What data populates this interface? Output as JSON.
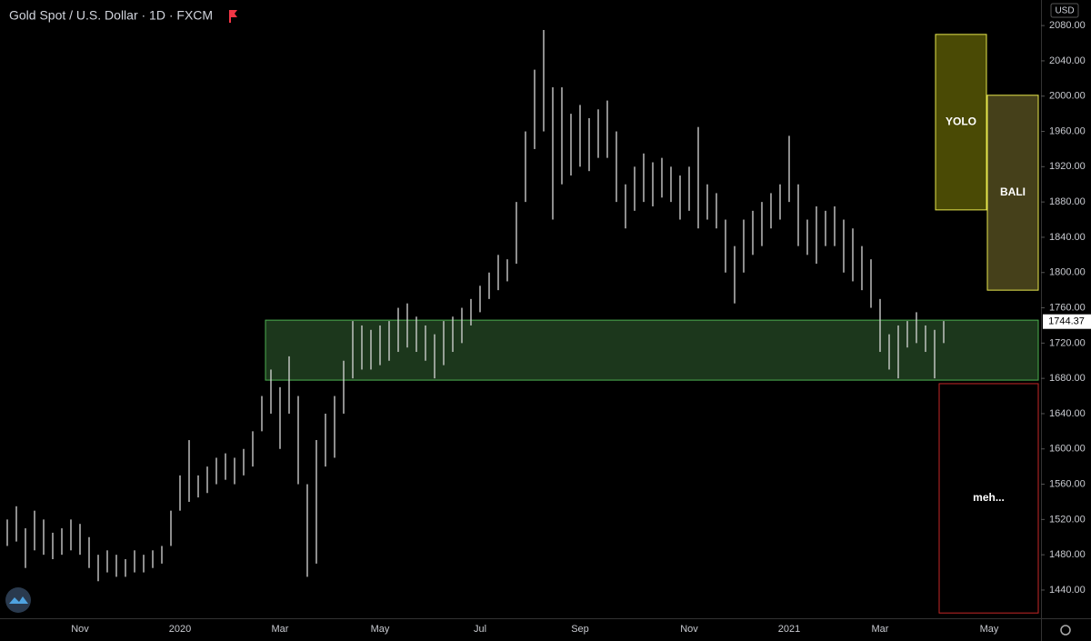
{
  "chart_data": {
    "type": "ohlc",
    "title": "Gold Spot / U.S. Dollar · 1D · FXCM",
    "currency": "USD",
    "categories": [
      null,
      null,
      null,
      null,
      null,
      null,
      null,
      null,
      "Nov",
      null,
      null,
      null,
      null,
      null,
      null,
      null,
      null,
      null,
      null,
      "2020",
      null,
      null,
      null,
      null,
      null,
      null,
      null,
      null,
      null,
      null,
      "Mar",
      null,
      null,
      null,
      null,
      null,
      null,
      null,
      null,
      null,
      null,
      "May",
      null,
      null,
      null,
      null,
      null,
      null,
      null,
      null,
      null,
      null,
      "Jul",
      null,
      null,
      null,
      null,
      null,
      null,
      null,
      null,
      null,
      null,
      "Sep",
      null,
      null,
      null,
      null,
      null,
      null,
      null,
      null,
      null,
      null,
      null,
      "Nov",
      null,
      null,
      null,
      null,
      null,
      null,
      null,
      null,
      null,
      null,
      "2021",
      null,
      null,
      null,
      null,
      null,
      null,
      null,
      null,
      null,
      "Mar",
      null,
      null,
      null,
      null,
      null,
      null,
      null,
      null,
      null,
      null,
      null,
      "May"
    ],
    "series": [
      {
        "color": "#d9d9d9",
        "high": [
          1520,
          1535,
          1510,
          1530,
          1520,
          1505,
          1510,
          1520,
          1515,
          1500,
          1480,
          1485,
          1480,
          1475,
          1485,
          1480,
          1485,
          1490,
          1530,
          1570,
          1610,
          1570,
          1580,
          1590,
          1595,
          1590,
          1600,
          1620,
          1660,
          1690,
          1670,
          1705,
          1660,
          1560,
          1610,
          1640,
          1660,
          1700,
          1745,
          1740,
          1735,
          1740,
          1745,
          1760,
          1765,
          1750,
          1740,
          1730,
          1745,
          1750,
          1760,
          1770,
          1785,
          1800,
          1820,
          1815,
          1880,
          1960,
          2030,
          2075,
          2010,
          2010,
          1980,
          1990,
          1975,
          1985,
          1995,
          1960,
          1900,
          1920,
          1935,
          1925,
          1930,
          1920,
          1910,
          1920,
          1965,
          1900,
          1890,
          1860,
          1830,
          1860,
          1870,
          1880,
          1890,
          1900,
          1955,
          1900,
          1860,
          1875,
          1870,
          1875,
          1860,
          1850,
          1830,
          1815,
          1770,
          1730,
          1740,
          1745,
          1755,
          1740,
          1735,
          1745,
          null,
          null,
          null,
          null,
          null
        ],
        "low": [
          1490,
          1495,
          1465,
          1485,
          1480,
          1475,
          1480,
          1485,
          1480,
          1465,
          1450,
          1460,
          1455,
          1455,
          1460,
          1460,
          1465,
          1470,
          1490,
          1530,
          1540,
          1545,
          1550,
          1560,
          1565,
          1560,
          1570,
          1580,
          1620,
          1640,
          1600,
          1640,
          1560,
          1455,
          1470,
          1580,
          1590,
          1640,
          1680,
          1690,
          1690,
          1695,
          1700,
          1710,
          1715,
          1710,
          1700,
          1680,
          1695,
          1710,
          1720,
          1740,
          1755,
          1770,
          1780,
          1790,
          1810,
          1880,
          1940,
          1960,
          1860,
          1900,
          1910,
          1920,
          1915,
          1930,
          1930,
          1880,
          1850,
          1870,
          1880,
          1875,
          1885,
          1880,
          1860,
          1870,
          1850,
          1860,
          1850,
          1800,
          1765,
          1800,
          1820,
          1830,
          1850,
          1860,
          1880,
          1830,
          1820,
          1810,
          1830,
          1830,
          1800,
          1790,
          1780,
          1760,
          1710,
          1690,
          1680,
          1715,
          1720,
          1710,
          1680,
          1720,
          null,
          null,
          null,
          null,
          null
        ]
      }
    ],
    "last": 1744.37,
    "ylim": [
      1408,
      2109
    ],
    "yticks": [
      {
        "value": 1440,
        "label": "1440.00"
      },
      {
        "value": 1480,
        "label": "1480.00"
      },
      {
        "value": 1520,
        "label": "1520.00"
      },
      {
        "value": 1560,
        "label": "1560.00"
      },
      {
        "value": 1600,
        "label": "1600.00"
      },
      {
        "value": 1640,
        "label": "1640.00"
      },
      {
        "value": 1680,
        "label": "1680.00"
      },
      {
        "value": 1720,
        "label": "1720.00"
      },
      {
        "value": 1760,
        "label": "1760.00"
      },
      {
        "value": 1800,
        "label": "1800.00"
      },
      {
        "value": 1840,
        "label": "1840.00"
      },
      {
        "value": 1880,
        "label": "1880.00"
      },
      {
        "value": 1920,
        "label": "1920.00"
      },
      {
        "value": 1960,
        "label": "1960.00"
      },
      {
        "value": 2000,
        "label": "2000.00"
      },
      {
        "value": 2040,
        "label": "2040.00"
      },
      {
        "value": 2080,
        "label": "2080.00"
      }
    ],
    "zones": [
      {
        "low": 1678,
        "high": 1746,
        "color": "#1e3a1e",
        "outline": "#4caf50"
      },
      {
        "low": 1871,
        "high": 2070,
        "color": "#4a4a05",
        "outline": "#e6e64d",
        "label": "YOLO"
      },
      {
        "low": 1780,
        "high": 2001,
        "color": "#45401a",
        "outline": "#e6e64d",
        "label": "BALI"
      },
      {
        "low": 1414,
        "high": 1674,
        "color": "#000000",
        "outline": "#c62828",
        "label": "meh..."
      }
    ]
  }
}
